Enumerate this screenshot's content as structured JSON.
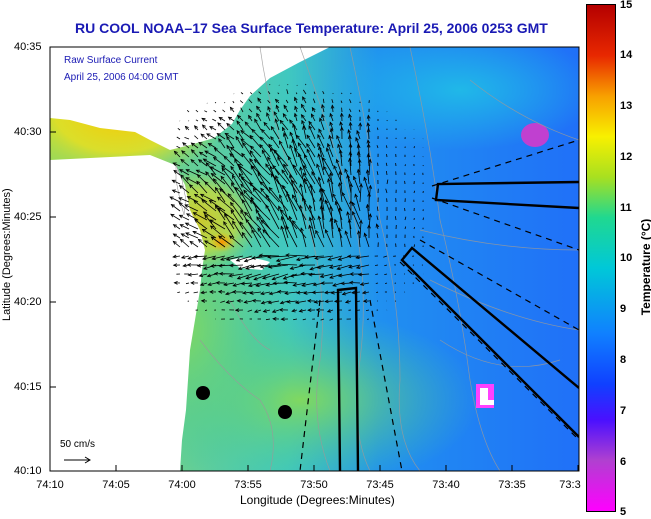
{
  "title": "RU COOL  NOAA–17  Sea Surface Temperature:  April 25, 2006 0253 GMT",
  "legend": {
    "line1": "Raw Surface Current",
    "line2": "April 25, 2006 04:00 GMT"
  },
  "scale_vector": "50 cm/s",
  "axes": {
    "xlabel": "Longitude (Degrees:Minutes)",
    "ylabel": "Latitude (Degrees:Minutes)",
    "xticks": [
      "74:10",
      "74:05",
      "74:00",
      "73:55",
      "73:50",
      "73:45",
      "73:40",
      "73:35",
      "73:3"
    ],
    "yticks": [
      "40:35",
      "40:30",
      "40:25",
      "40:20",
      "40:15",
      "40:10"
    ]
  },
  "colorbar": {
    "label": "Temperature (°C)",
    "ticks": [
      "15",
      "14",
      "13",
      "12",
      "11",
      "10",
      "9",
      "8",
      "7",
      "6",
      "5"
    ],
    "range": [
      5,
      15
    ]
  },
  "colors": {
    "land": "#ffffff",
    "title": "#1a1ab4",
    "vectors": "#000000"
  }
}
